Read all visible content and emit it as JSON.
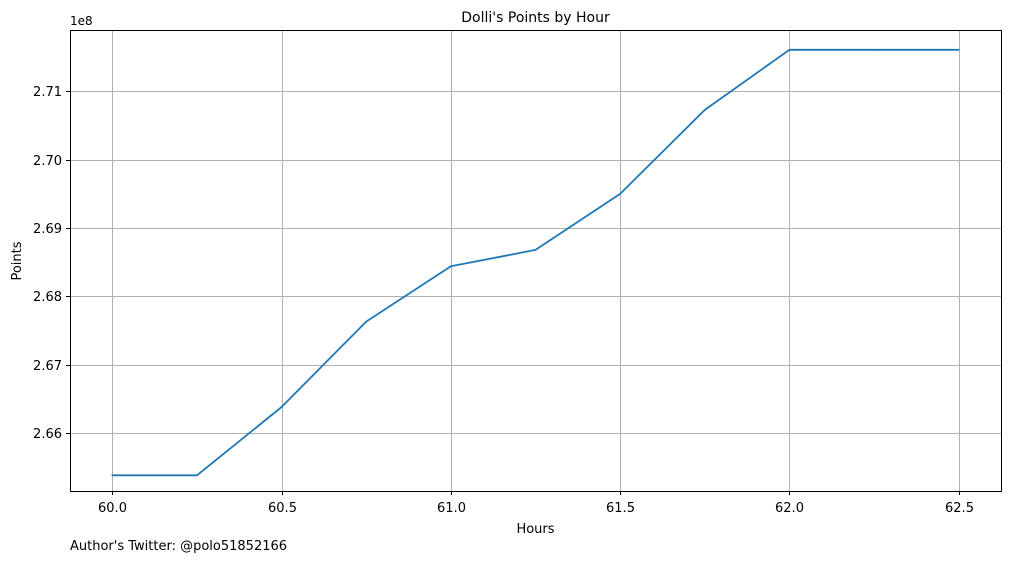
{
  "chart_data": {
    "type": "line",
    "title": "Dolli's Points by Hour",
    "xlabel": "Hours",
    "ylabel": "Points",
    "y_offset_label": "1e8",
    "footnote": "Author's Twitter: @polo51852166",
    "grid": true,
    "xlim": [
      59.875,
      62.625
    ],
    "ylim": [
      2.6515,
      2.719
    ],
    "x_ticks": [
      {
        "value": 60.0,
        "label": "60.0"
      },
      {
        "value": 60.5,
        "label": "60.5"
      },
      {
        "value": 61.0,
        "label": "61.0"
      },
      {
        "value": 61.5,
        "label": "61.5"
      },
      {
        "value": 62.0,
        "label": "62.0"
      },
      {
        "value": 62.5,
        "label": "62.5"
      }
    ],
    "y_ticks": [
      {
        "value": 2.66,
        "label": "2.66"
      },
      {
        "value": 2.67,
        "label": "2.67"
      },
      {
        "value": 2.68,
        "label": "2.68"
      },
      {
        "value": 2.69,
        "label": "2.69"
      },
      {
        "value": 2.7,
        "label": "2.70"
      },
      {
        "value": 2.71,
        "label": "2.71"
      }
    ],
    "series": [
      {
        "color": "#1f77b4",
        "x": [
          60.0,
          60.25,
          60.5,
          60.75,
          61.0,
          61.25,
          61.5,
          61.75,
          62.0,
          62.25,
          62.5
        ],
        "y": [
          2.6538,
          2.6538,
          2.6638,
          2.6763,
          2.6844,
          2.6868,
          2.695,
          2.7073,
          2.7161,
          2.7161,
          2.7161
        ]
      }
    ]
  }
}
